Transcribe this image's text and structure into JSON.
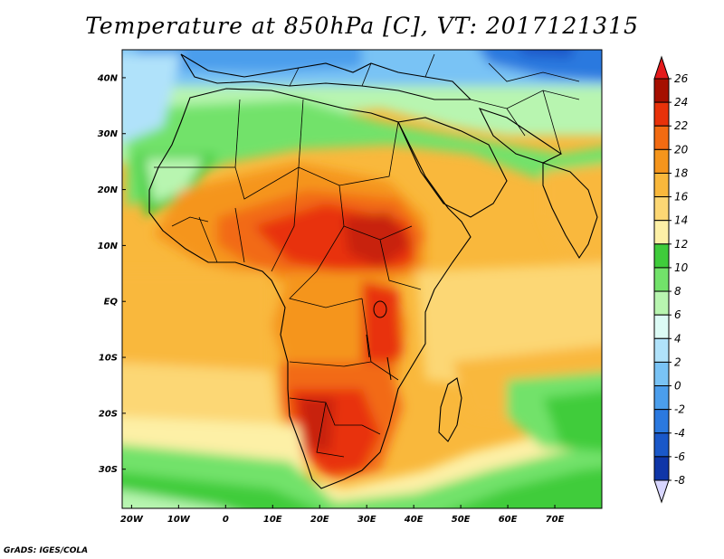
{
  "title": "Temperature at 850hPa [C], VT: 2017121315",
  "credit": "GrADS: IGES/COLA",
  "map": {
    "lon_range": [
      -22,
      80
    ],
    "lat_range": [
      -37,
      45
    ],
    "lat_ticks": [
      {
        "value": 40,
        "label": "40N"
      },
      {
        "value": 30,
        "label": "30N"
      },
      {
        "value": 20,
        "label": "20N"
      },
      {
        "value": 10,
        "label": "10N"
      },
      {
        "value": 0,
        "label": "EQ"
      },
      {
        "value": -10,
        "label": "10S"
      },
      {
        "value": -20,
        "label": "20S"
      },
      {
        "value": -30,
        "label": "30S"
      }
    ],
    "lon_ticks": [
      {
        "value": -20,
        "label": "20W"
      },
      {
        "value": -10,
        "label": "10W"
      },
      {
        "value": 0,
        "label": "0"
      },
      {
        "value": 10,
        "label": "10E"
      },
      {
        "value": 20,
        "label": "20E"
      },
      {
        "value": 30,
        "label": "30E"
      },
      {
        "value": 40,
        "label": "40E"
      },
      {
        "value": 50,
        "label": "50E"
      },
      {
        "value": 60,
        "label": "60E"
      },
      {
        "value": 70,
        "label": "70E"
      }
    ]
  },
  "colorbar": {
    "levels": [
      {
        "label": "26",
        "color": "#a50f00"
      },
      {
        "label": "24",
        "color": "#e8320a"
      },
      {
        "label": "22",
        "color": "#f26b12"
      },
      {
        "label": "20",
        "color": "#f5951c"
      },
      {
        "label": "18",
        "color": "#f9b83c"
      },
      {
        "label": "16",
        "color": "#fcd774"
      },
      {
        "label": "14",
        "color": "#fdf0a6"
      },
      {
        "label": "12",
        "color": "#3fcc3b"
      },
      {
        "label": "10",
        "color": "#72e26a"
      },
      {
        "label": "8",
        "color": "#b8f5b0"
      },
      {
        "label": "6",
        "color": "#dcfbf5"
      },
      {
        "label": "4",
        "color": "#b0e2fa"
      },
      {
        "label": "2",
        "color": "#79c3f5"
      },
      {
        "label": "0",
        "color": "#4b9eec"
      },
      {
        "label": "-2",
        "color": "#2b79df"
      },
      {
        "label": "-4",
        "color": "#1a58c9"
      },
      {
        "label": "-6",
        "color": "#0f36a8"
      },
      {
        "label": "-8",
        "color": "#081a70"
      }
    ],
    "top_arrow_color": "#e41a1c",
    "bottom_arrow_color": "#d8d6ff"
  }
}
